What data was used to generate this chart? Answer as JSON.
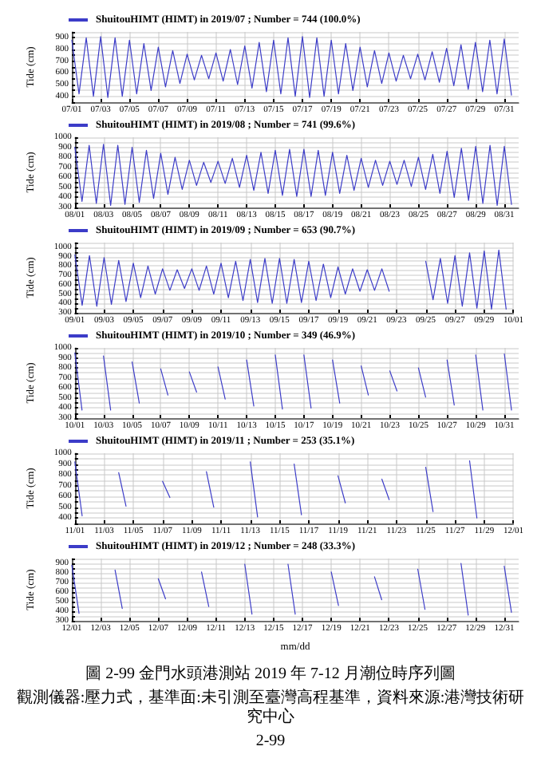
{
  "chart_data": [
    {
      "type": "line",
      "ylabel": "Tide (cm)",
      "legend": "top left",
      "grid": true,
      "line_style": "solid",
      "xlim": [
        "2019-07-01T00:00",
        "2019-08-01T00:00"
      ],
      "xticks": [
        {
          "value": "2019-07-01T00:00",
          "label": "07/01"
        },
        {
          "value": "2019-07-03T00:00",
          "label": "07/03"
        },
        {
          "value": "2019-07-05T00:00",
          "label": "07/05"
        },
        {
          "value": "2019-07-07T00:00",
          "label": "07/07"
        },
        {
          "value": "2019-07-09T00:00",
          "label": "07/09"
        },
        {
          "value": "2019-07-11T00:00",
          "label": "07/11"
        },
        {
          "value": "2019-07-13T00:00",
          "label": "07/13"
        },
        {
          "value": "2019-07-15T00:00",
          "label": "07/15"
        },
        {
          "value": "2019-07-17T00:00",
          "label": "07/17"
        },
        {
          "value": "2019-07-19T00:00",
          "label": "07/19"
        },
        {
          "value": "2019-07-21T00:00",
          "label": "07/21"
        },
        {
          "value": "2019-07-23T00:00",
          "label": "07/23"
        },
        {
          "value": "2019-07-25T00:00",
          "label": "07/25"
        },
        {
          "value": "2019-07-27T00:00",
          "label": "07/27"
        },
        {
          "value": "2019-07-29T00:00",
          "label": "07/29"
        },
        {
          "value": "2019-07-31T00:00",
          "label": "07/31"
        }
      ],
      "ylim": [
        350,
        950
      ],
      "yticks": [
        {
          "value": 350,
          "label": null
        },
        400,
        {
          "value": 450,
          "label": null
        },
        500,
        {
          "value": 550,
          "label": null
        },
        600,
        {
          "value": 650,
          "label": null
        },
        700,
        {
          "value": 750,
          "label": null
        },
        800,
        {
          "value": 850,
          "label": null
        },
        900,
        {
          "value": 950,
          "label": null
        }
      ],
      "x": [
        "2019-07-01T00:00",
        "2019-07-01T12:00",
        "2019-07-02T00:00",
        "2019-07-02T12:00",
        "2019-07-03T00:00",
        "2019-07-03T12:00",
        "2019-07-04T00:00",
        "2019-07-04T12:00",
        "2019-07-05T00:00",
        "2019-07-05T12:00",
        "2019-07-06T00:00",
        "2019-07-06T12:00",
        "2019-07-07T00:00",
        "2019-07-07T12:00",
        "2019-07-08T00:00",
        "2019-07-08T12:00",
        "2019-07-09T00:00",
        "2019-07-09T12:00",
        "2019-07-10T00:00",
        "2019-07-10T12:00",
        "2019-07-11T00:00",
        "2019-07-11T12:00",
        "2019-07-12T00:00",
        "2019-07-12T12:00",
        "2019-07-13T00:00",
        "2019-07-13T12:00",
        "2019-07-14T00:00",
        "2019-07-14T12:00",
        "2019-07-15T00:00",
        "2019-07-15T12:00",
        "2019-07-16T00:00",
        "2019-07-16T12:00",
        "2019-07-17T00:00",
        "2019-07-17T12:00",
        "2019-07-18T00:00",
        "2019-07-18T12:00",
        "2019-07-19T00:00",
        "2019-07-19T12:00",
        "2019-07-20T00:00",
        "2019-07-20T12:00",
        "2019-07-21T00:00",
        "2019-07-21T12:00",
        "2019-07-22T00:00",
        "2019-07-22T12:00",
        "2019-07-23T00:00",
        "2019-07-23T12:00",
        "2019-07-24T00:00",
        "2019-07-24T12:00",
        "2019-07-25T00:00",
        "2019-07-25T12:00",
        "2019-07-26T00:00",
        "2019-07-26T12:00",
        "2019-07-27T00:00",
        "2019-07-27T12:00",
        "2019-07-28T00:00",
        "2019-07-28T12:00",
        "2019-07-29T00:00",
        "2019-07-29T12:00",
        "2019-07-30T00:00",
        "2019-07-30T12:00",
        "2019-07-31T00:00",
        "2019-07-31T12:00"
      ],
      "series": [
        {
          "name": "ShuitouHIMT (HIMT) in 2019/07 ; Number = 744 (100.0%)",
          "color": "#3c3cc8",
          "values": [
            880,
            420,
            900,
            400,
            910,
            390,
            900,
            400,
            880,
            420,
            850,
            450,
            820,
            480,
            790,
            510,
            760,
            540,
            750,
            550,
            770,
            530,
            800,
            500,
            830,
            470,
            860,
            440,
            880,
            420,
            900,
            400,
            910,
            390,
            900,
            400,
            880,
            420,
            850,
            450,
            820,
            480,
            790,
            510,
            770,
            530,
            750,
            550,
            760,
            540,
            780,
            520,
            810,
            490,
            840,
            460,
            860,
            440,
            880,
            420,
            890,
            410
          ]
        }
      ]
    },
    {
      "type": "line",
      "ylabel": "Tide (cm)",
      "legend": "top left",
      "grid": true,
      "line_style": "solid",
      "xlim": [
        "2019-08-01T00:00",
        "2019-09-01T00:00"
      ],
      "xticks": [
        {
          "value": "2019-08-01T00:00",
          "label": "08/01"
        },
        {
          "value": "2019-08-03T00:00",
          "label": "08/03"
        },
        {
          "value": "2019-08-05T00:00",
          "label": "08/05"
        },
        {
          "value": "2019-08-07T00:00",
          "label": "08/07"
        },
        {
          "value": "2019-08-09T00:00",
          "label": "08/09"
        },
        {
          "value": "2019-08-11T00:00",
          "label": "08/11"
        },
        {
          "value": "2019-08-13T00:00",
          "label": "08/13"
        },
        {
          "value": "2019-08-15T00:00",
          "label": "08/15"
        },
        {
          "value": "2019-08-17T00:00",
          "label": "08/17"
        },
        {
          "value": "2019-08-19T00:00",
          "label": "08/19"
        },
        {
          "value": "2019-08-21T00:00",
          "label": "08/21"
        },
        {
          "value": "2019-08-23T00:00",
          "label": "08/23"
        },
        {
          "value": "2019-08-25T00:00",
          "label": "08/25"
        },
        {
          "value": "2019-08-27T00:00",
          "label": "08/27"
        },
        {
          "value": "2019-08-29T00:00",
          "label": "08/29"
        },
        {
          "value": "2019-08-31T00:00",
          "label": "08/31"
        }
      ],
      "ylim": [
        300,
        1000
      ],
      "yticks": [
        300,
        {
          "value": 350,
          "label": null
        },
        400,
        {
          "value": 450,
          "label": null
        },
        500,
        {
          "value": 550,
          "label": null
        },
        600,
        {
          "value": 650,
          "label": null
        },
        700,
        {
          "value": 750,
          "label": null
        },
        800,
        {
          "value": 850,
          "label": null
        },
        900,
        {
          "value": 950,
          "label": null
        },
        1000
      ],
      "x": [
        "2019-08-01T00:00",
        "2019-08-01T12:00",
        "2019-08-02T00:00",
        "2019-08-02T12:00",
        "2019-08-03T00:00",
        "2019-08-03T12:00",
        "2019-08-04T00:00",
        "2019-08-04T12:00",
        "2019-08-05T00:00",
        "2019-08-05T12:00",
        "2019-08-06T00:00",
        "2019-08-06T12:00",
        "2019-08-07T00:00",
        "2019-08-07T12:00",
        "2019-08-08T00:00",
        "2019-08-08T12:00",
        "2019-08-09T00:00",
        "2019-08-09T12:00",
        "2019-08-10T00:00",
        "2019-08-10T12:00",
        "2019-08-11T00:00",
        "2019-08-11T12:00",
        "2019-08-12T00:00",
        "2019-08-12T12:00",
        "2019-08-13T00:00",
        "2019-08-13T12:00",
        "2019-08-14T00:00",
        "2019-08-14T12:00",
        "2019-08-15T00:00",
        "2019-08-15T12:00",
        "2019-08-16T00:00",
        "2019-08-16T12:00",
        "2019-08-17T00:00",
        "2019-08-17T12:00",
        "2019-08-18T00:00",
        "2019-08-18T12:00",
        "2019-08-19T00:00",
        "2019-08-19T12:00",
        "2019-08-20T00:00",
        "2019-08-20T12:00",
        "2019-08-21T00:00",
        "2019-08-21T12:00",
        "2019-08-22T00:00",
        "2019-08-22T12:00",
        "2019-08-23T00:00",
        "2019-08-23T12:00",
        "2019-08-24T00:00",
        "2019-08-24T12:00",
        "2019-08-25T00:00",
        "2019-08-25T12:00",
        "2019-08-26T00:00",
        "2019-08-26T12:00",
        "2019-08-27T00:00",
        "2019-08-27T12:00",
        "2019-08-28T00:00",
        "2019-08-28T12:00",
        "2019-08-29T00:00",
        "2019-08-29T12:00",
        "2019-08-30T00:00",
        "2019-08-30T12:00",
        "2019-08-31T00:00",
        "2019-08-31T12:00"
      ],
      "series": [
        {
          "name": "ShuitouHIMT (HIMT) in 2019/08 ; Number = 741 (99.6%)",
          "color": "#3c3cc8",
          "values": [
            900,
            360,
            920,
            340,
            930,
            320,
            920,
            330,
            900,
            350,
            870,
            390,
            840,
            430,
            800,
            480,
            770,
            520,
            750,
            550,
            760,
            540,
            790,
            500,
            820,
            470,
            850,
            440,
            870,
            420,
            880,
            410,
            880,
            410,
            870,
            420,
            850,
            440,
            820,
            470,
            790,
            500,
            770,
            520,
            760,
            530,
            770,
            510,
            800,
            480,
            830,
            440,
            860,
            400,
            890,
            370,
            910,
            340,
            920,
            320,
            910,
            330
          ]
        }
      ]
    },
    {
      "type": "line",
      "ylabel": "Tide (cm)",
      "legend": "top left",
      "grid": true,
      "line_style": "solid",
      "xlim": [
        "2019-09-01T00:00",
        "2019-10-01T00:00"
      ],
      "xticks": [
        {
          "value": "2019-09-01T00:00",
          "label": "09/01"
        },
        {
          "value": "2019-09-03T00:00",
          "label": "09/03"
        },
        {
          "value": "2019-09-05T00:00",
          "label": "09/05"
        },
        {
          "value": "2019-09-07T00:00",
          "label": "09/07"
        },
        {
          "value": "2019-09-09T00:00",
          "label": "09/09"
        },
        {
          "value": "2019-09-11T00:00",
          "label": "09/11"
        },
        {
          "value": "2019-09-13T00:00",
          "label": "09/13"
        },
        {
          "value": "2019-09-15T00:00",
          "label": "09/15"
        },
        {
          "value": "2019-09-17T00:00",
          "label": "09/17"
        },
        {
          "value": "2019-09-19T00:00",
          "label": "09/19"
        },
        {
          "value": "2019-09-21T00:00",
          "label": "09/21"
        },
        {
          "value": "2019-09-23T00:00",
          "label": "09/23"
        },
        {
          "value": "2019-09-25T00:00",
          "label": "09/25"
        },
        {
          "value": "2019-09-27T00:00",
          "label": "09/27"
        },
        {
          "value": "2019-09-29T00:00",
          "label": "09/29"
        },
        {
          "value": "2019-10-01T00:00",
          "label": "10/01"
        }
      ],
      "ylim": [
        300,
        1050
      ],
      "yticks": [
        300,
        {
          "value": 350,
          "label": null
        },
        400,
        {
          "value": 450,
          "label": null
        },
        500,
        {
          "value": 550,
          "label": null
        },
        600,
        {
          "value": 650,
          "label": null
        },
        700,
        {
          "value": 750,
          "label": null
        },
        800,
        {
          "value": 850,
          "label": null
        },
        900,
        {
          "value": 950,
          "label": null
        },
        1000,
        {
          "value": 1050,
          "label": null
        }
      ],
      "x": [
        "2019-09-01T00:00",
        "2019-09-01T12:00",
        "2019-09-02T00:00",
        "2019-09-02T12:00",
        "2019-09-03T00:00",
        "2019-09-03T12:00",
        "2019-09-04T00:00",
        "2019-09-04T12:00",
        "2019-09-05T00:00",
        "2019-09-05T12:00",
        "2019-09-06T00:00",
        "2019-09-06T12:00",
        "2019-09-07T00:00",
        "2019-09-07T12:00",
        "2019-09-08T00:00",
        "2019-09-08T12:00",
        "2019-09-09T00:00",
        "2019-09-09T12:00",
        "2019-09-10T00:00",
        "2019-09-10T12:00",
        "2019-09-11T00:00",
        "2019-09-11T12:00",
        "2019-09-12T00:00",
        "2019-09-12T12:00",
        "2019-09-13T00:00",
        "2019-09-13T12:00",
        "2019-09-14T00:00",
        "2019-09-14T12:00",
        "2019-09-15T00:00",
        "2019-09-15T12:00",
        "2019-09-16T00:00",
        "2019-09-16T12:00",
        "2019-09-17T00:00",
        "2019-09-17T12:00",
        "2019-09-18T00:00",
        "2019-09-18T12:00",
        "2019-09-19T00:00",
        "2019-09-19T12:00",
        "2019-09-20T00:00",
        "2019-09-20T12:00",
        "2019-09-21T00:00",
        "2019-09-21T12:00",
        "2019-09-22T00:00",
        "2019-09-22T12:00",
        "2019-09-23T00:00",
        "2019-09-23T12:00",
        "2019-09-24T00:00",
        "2019-09-24T12:00",
        "2019-09-25T00:00",
        "2019-09-25T12:00",
        "2019-09-26T00:00",
        "2019-09-26T12:00",
        "2019-09-27T00:00",
        "2019-09-27T12:00",
        "2019-09-28T00:00",
        "2019-09-28T12:00",
        "2019-09-29T00:00",
        "2019-09-29T12:00",
        "2019-09-30T00:00",
        "2019-09-30T12:00"
      ],
      "series": [
        {
          "name": "ShuitouHIMT (HIMT) in 2019/09 ; Number = 653 (90.7%)",
          "color": "#3c3cc8",
          "values": [
            920,
            380,
            910,
            370,
            890,
            390,
            860,
            420,
            830,
            460,
            800,
            500,
            770,
            540,
            760,
            560,
            770,
            540,
            800,
            500,
            830,
            460,
            850,
            430,
            870,
            410,
            880,
            400,
            880,
            400,
            870,
            410,
            850,
            430,
            820,
            460,
            790,
            500,
            770,
            530,
            760,
            540,
            770,
            530,
            null,
            null,
            null,
            null,
            850,
            440,
            880,
            400,
            910,
            370,
            940,
            350,
            960,
            340,
            970,
            340
          ]
        }
      ]
    },
    {
      "type": "line",
      "ylabel": "Tide (cm)",
      "legend": "top left",
      "grid": true,
      "line_style": "solid",
      "xlim": [
        "2019-10-01T00:00",
        "2019-11-01T00:00"
      ],
      "xticks": [
        {
          "value": "2019-10-01T00:00",
          "label": "10/01"
        },
        {
          "value": "2019-10-03T00:00",
          "label": "10/03"
        },
        {
          "value": "2019-10-05T00:00",
          "label": "10/05"
        },
        {
          "value": "2019-10-07T00:00",
          "label": "10/07"
        },
        {
          "value": "2019-10-09T00:00",
          "label": "10/09"
        },
        {
          "value": "2019-10-11T00:00",
          "label": "10/11"
        },
        {
          "value": "2019-10-13T00:00",
          "label": "10/13"
        },
        {
          "value": "2019-10-15T00:00",
          "label": "10/15"
        },
        {
          "value": "2019-10-17T00:00",
          "label": "10/17"
        },
        {
          "value": "2019-10-19T00:00",
          "label": "10/19"
        },
        {
          "value": "2019-10-21T00:00",
          "label": "10/21"
        },
        {
          "value": "2019-10-23T00:00",
          "label": "10/23"
        },
        {
          "value": "2019-10-25T00:00",
          "label": "10/25"
        },
        {
          "value": "2019-10-27T00:00",
          "label": "10/27"
        },
        {
          "value": "2019-10-29T00:00",
          "label": "10/29"
        },
        {
          "value": "2019-10-31T00:00",
          "label": "10/31"
        }
      ],
      "ylim": [
        300,
        1000
      ],
      "yticks": [
        300,
        {
          "value": 350,
          "label": null
        },
        400,
        {
          "value": 450,
          "label": null
        },
        500,
        {
          "value": 550,
          "label": null
        },
        600,
        {
          "value": 650,
          "label": null
        },
        700,
        {
          "value": 750,
          "label": null
        },
        800,
        {
          "value": 850,
          "label": null
        },
        900,
        {
          "value": 950,
          "label": null
        },
        1000
      ],
      "x": [
        "2019-10-01T00:00",
        "2019-10-01T12:00",
        "2019-10-02T00:00",
        "2019-10-02T12:00",
        "2019-10-03T00:00",
        "2019-10-03T12:00",
        "2019-10-04T00:00",
        "2019-10-04T12:00",
        "2019-10-05T00:00",
        "2019-10-05T12:00",
        "2019-10-06T00:00",
        "2019-10-06T12:00",
        "2019-10-07T00:00",
        "2019-10-07T12:00",
        "2019-10-08T00:00",
        "2019-10-08T12:00",
        "2019-10-09T00:00",
        "2019-10-09T12:00",
        "2019-10-10T00:00",
        "2019-10-10T12:00",
        "2019-10-11T00:00",
        "2019-10-11T12:00",
        "2019-10-12T00:00",
        "2019-10-12T12:00",
        "2019-10-13T00:00",
        "2019-10-13T12:00",
        "2019-10-14T00:00",
        "2019-10-14T12:00",
        "2019-10-15T00:00",
        "2019-10-15T12:00",
        "2019-10-16T00:00",
        "2019-10-16T12:00",
        "2019-10-17T00:00",
        "2019-10-17T12:00",
        "2019-10-18T00:00",
        "2019-10-18T12:00",
        "2019-10-19T00:00",
        "2019-10-19T12:00",
        "2019-10-20T00:00",
        "2019-10-20T12:00",
        "2019-10-21T00:00",
        "2019-10-21T12:00",
        "2019-10-22T00:00",
        "2019-10-22T12:00",
        "2019-10-23T00:00",
        "2019-10-23T12:00",
        "2019-10-24T00:00",
        "2019-10-24T12:00",
        "2019-10-25T00:00",
        "2019-10-25T12:00",
        "2019-10-26T00:00",
        "2019-10-26T12:00",
        "2019-10-27T00:00",
        "2019-10-27T12:00",
        "2019-10-28T00:00",
        "2019-10-28T12:00",
        "2019-10-29T00:00",
        "2019-10-29T12:00",
        "2019-10-30T00:00",
        "2019-10-30T12:00",
        "2019-10-31T00:00",
        "2019-10-31T12:00"
      ],
      "series": [
        {
          "name": "ShuitouHIMT (HIMT) in 2019/10 ; Number = 349 (46.9%)",
          "color": "#3c3cc8",
          "values": [
            950,
            380,
            null,
            null,
            920,
            380,
            null,
            null,
            860,
            450,
            null,
            null,
            790,
            530,
            null,
            null,
            760,
            560,
            null,
            null,
            810,
            490,
            null,
            null,
            880,
            420,
            null,
            null,
            930,
            390,
            null,
            null,
            930,
            400,
            null,
            null,
            880,
            450,
            null,
            null,
            820,
            530,
            null,
            null,
            770,
            570,
            null,
            null,
            800,
            510,
            null,
            null,
            880,
            430,
            null,
            null,
            930,
            380,
            null,
            null,
            940,
            380
          ]
        }
      ]
    },
    {
      "type": "line",
      "ylabel": "Tide (cm)",
      "legend": "top left",
      "grid": true,
      "line_style": "solid",
      "xlim": [
        "2019-11-01T00:00",
        "2019-12-01T00:00"
      ],
      "xticks": [
        {
          "value": "2019-11-01T00:00",
          "label": "11/01"
        },
        {
          "value": "2019-11-03T00:00",
          "label": "11/03"
        },
        {
          "value": "2019-11-05T00:00",
          "label": "11/05"
        },
        {
          "value": "2019-11-07T00:00",
          "label": "11/07"
        },
        {
          "value": "2019-11-09T00:00",
          "label": "11/09"
        },
        {
          "value": "2019-11-11T00:00",
          "label": "11/11"
        },
        {
          "value": "2019-11-13T00:00",
          "label": "11/13"
        },
        {
          "value": "2019-11-15T00:00",
          "label": "11/15"
        },
        {
          "value": "2019-11-17T00:00",
          "label": "11/17"
        },
        {
          "value": "2019-11-19T00:00",
          "label": "11/19"
        },
        {
          "value": "2019-11-21T00:00",
          "label": "11/21"
        },
        {
          "value": "2019-11-23T00:00",
          "label": "11/23"
        },
        {
          "value": "2019-11-25T00:00",
          "label": "11/25"
        },
        {
          "value": "2019-11-27T00:00",
          "label": "11/27"
        },
        {
          "value": "2019-11-29T00:00",
          "label": "11/29"
        },
        {
          "value": "2019-12-01T00:00",
          "label": "12/01"
        }
      ],
      "ylim": [
        350,
        1000
      ],
      "yticks": [
        {
          "value": 350,
          "label": null
        },
        400,
        {
          "value": 450,
          "label": null
        },
        500,
        {
          "value": 550,
          "label": null
        },
        600,
        {
          "value": 650,
          "label": null
        },
        700,
        {
          "value": 750,
          "label": null
        },
        800,
        {
          "value": 850,
          "label": null
        },
        900,
        {
          "value": 950,
          "label": null
        },
        1000
      ],
      "x": [
        "2019-11-01T00:00",
        "2019-11-01T12:00",
        "2019-11-02T00:00",
        "2019-11-02T12:00",
        "2019-11-03T00:00",
        "2019-11-03T12:00",
        "2019-11-04T00:00",
        "2019-11-04T12:00",
        "2019-11-05T00:00",
        "2019-11-05T12:00",
        "2019-11-06T00:00",
        "2019-11-06T12:00",
        "2019-11-07T00:00",
        "2019-11-07T12:00",
        "2019-11-08T00:00",
        "2019-11-08T12:00",
        "2019-11-09T00:00",
        "2019-11-09T12:00",
        "2019-11-10T00:00",
        "2019-11-10T12:00",
        "2019-11-11T00:00",
        "2019-11-11T12:00",
        "2019-11-12T00:00",
        "2019-11-12T12:00",
        "2019-11-13T00:00",
        "2019-11-13T12:00",
        "2019-11-14T00:00",
        "2019-11-14T12:00",
        "2019-11-15T00:00",
        "2019-11-15T12:00",
        "2019-11-16T00:00",
        "2019-11-16T12:00",
        "2019-11-17T00:00",
        "2019-11-17T12:00",
        "2019-11-18T00:00",
        "2019-11-18T12:00",
        "2019-11-19T00:00",
        "2019-11-19T12:00",
        "2019-11-20T00:00",
        "2019-11-20T12:00",
        "2019-11-21T00:00",
        "2019-11-21T12:00",
        "2019-11-22T00:00",
        "2019-11-22T12:00",
        "2019-11-23T00:00",
        "2019-11-23T12:00",
        "2019-11-24T00:00",
        "2019-11-24T12:00",
        "2019-11-25T00:00",
        "2019-11-25T12:00",
        "2019-11-26T00:00",
        "2019-11-26T12:00",
        "2019-11-27T00:00",
        "2019-11-27T12:00",
        "2019-11-28T00:00",
        "2019-11-28T12:00"
      ],
      "series": [
        {
          "name": "ShuitouHIMT (HIMT) in 2019/11 ; Number = 253 (35.1%)",
          "color": "#3c3cc8",
          "values": [
            920,
            420,
            null,
            null,
            null,
            null,
            820,
            510,
            null,
            null,
            null,
            null,
            740,
            590,
            null,
            null,
            null,
            null,
            830,
            500,
            null,
            null,
            null,
            null,
            920,
            410,
            null,
            null,
            null,
            null,
            900,
            430,
            null,
            null,
            null,
            null,
            790,
            540,
            null,
            null,
            null,
            null,
            760,
            570,
            null,
            null,
            null,
            null,
            870,
            460,
            null,
            null,
            null,
            null,
            930,
            400
          ]
        }
      ]
    },
    {
      "type": "line",
      "ylabel": "Tide (cm)",
      "xlabel": "mm/dd",
      "legend": "top left",
      "grid": true,
      "line_style": "solid",
      "title": "圖 2-99 金門水頭港測站 2019 年 7-12 月潮位時序列圖",
      "annotations": [
        "觀測儀器:壓力式，基準面:未引測至臺灣高程基準，資料來源:港灣技術研究中心",
        "2-99"
      ],
      "xlim": [
        "2019-12-01T00:00",
        "2020-01-01T00:00"
      ],
      "xticks": [
        {
          "value": "2019-12-01T00:00",
          "label": "12/01"
        },
        {
          "value": "2019-12-03T00:00",
          "label": "12/03"
        },
        {
          "value": "2019-12-05T00:00",
          "label": "12/05"
        },
        {
          "value": "2019-12-07T00:00",
          "label": "12/07"
        },
        {
          "value": "2019-12-09T00:00",
          "label": "12/09"
        },
        {
          "value": "2019-12-11T00:00",
          "label": "12/11"
        },
        {
          "value": "2019-12-13T00:00",
          "label": "12/13"
        },
        {
          "value": "2019-12-15T00:00",
          "label": "12/15"
        },
        {
          "value": "2019-12-17T00:00",
          "label": "12/17"
        },
        {
          "value": "2019-12-19T00:00",
          "label": "12/19"
        },
        {
          "value": "2019-12-21T00:00",
          "label": "12/21"
        },
        {
          "value": "2019-12-23T00:00",
          "label": "12/23"
        },
        {
          "value": "2019-12-25T00:00",
          "label": "12/25"
        },
        {
          "value": "2019-12-27T00:00",
          "label": "12/27"
        },
        {
          "value": "2019-12-29T00:00",
          "label": "12/29"
        },
        {
          "value": "2019-12-31T00:00",
          "label": "12/31"
        }
      ],
      "ylim": [
        300,
        950
      ],
      "yticks": [
        300,
        {
          "value": 350,
          "label": null
        },
        400,
        {
          "value": 450,
          "label": null
        },
        500,
        {
          "value": 550,
          "label": null
        },
        600,
        {
          "value": 650,
          "label": null
        },
        700,
        {
          "value": 750,
          "label": null
        },
        800,
        {
          "value": 850,
          "label": null
        },
        900,
        {
          "value": 950,
          "label": null
        }
      ],
      "x": [
        "2019-12-01T00:00",
        "2019-12-01T12:00",
        "2019-12-02T00:00",
        "2019-12-02T12:00",
        "2019-12-03T00:00",
        "2019-12-03T12:00",
        "2019-12-04T00:00",
        "2019-12-04T12:00",
        "2019-12-05T00:00",
        "2019-12-05T12:00",
        "2019-12-06T00:00",
        "2019-12-06T12:00",
        "2019-12-07T00:00",
        "2019-12-07T12:00",
        "2019-12-08T00:00",
        "2019-12-08T12:00",
        "2019-12-09T00:00",
        "2019-12-09T12:00",
        "2019-12-10T00:00",
        "2019-12-10T12:00",
        "2019-12-11T00:00",
        "2019-12-11T12:00",
        "2019-12-12T00:00",
        "2019-12-12T12:00",
        "2019-12-13T00:00",
        "2019-12-13T12:00",
        "2019-12-14T00:00",
        "2019-12-14T12:00",
        "2019-12-15T00:00",
        "2019-12-15T12:00",
        "2019-12-16T00:00",
        "2019-12-16T12:00",
        "2019-12-17T00:00",
        "2019-12-17T12:00",
        "2019-12-18T00:00",
        "2019-12-18T12:00",
        "2019-12-19T00:00",
        "2019-12-19T12:00",
        "2019-12-20T00:00",
        "2019-12-20T12:00",
        "2019-12-21T00:00",
        "2019-12-21T12:00",
        "2019-12-22T00:00",
        "2019-12-22T12:00",
        "2019-12-23T00:00",
        "2019-12-23T12:00",
        "2019-12-24T00:00",
        "2019-12-24T12:00",
        "2019-12-25T00:00",
        "2019-12-25T12:00",
        "2019-12-26T00:00",
        "2019-12-26T12:00",
        "2019-12-27T00:00",
        "2019-12-27T12:00",
        "2019-12-28T00:00",
        "2019-12-28T12:00",
        "2019-12-29T00:00",
        "2019-12-29T12:00",
        "2019-12-30T00:00",
        "2019-12-30T12:00",
        "2019-12-31T00:00",
        "2019-12-31T12:00"
      ],
      "series": [
        {
          "name": "ShuitouHIMT (HIMT) in 2019/12 ; Number = 248 (33.3%)",
          "color": "#3c3cc8",
          "values": [
            880,
            380,
            null,
            null,
            null,
            null,
            830,
            430,
            null,
            null,
            null,
            null,
            740,
            530,
            null,
            null,
            null,
            null,
            810,
            450,
            null,
            null,
            null,
            null,
            890,
            370,
            null,
            null,
            null,
            null,
            890,
            370,
            null,
            null,
            null,
            null,
            810,
            460,
            null,
            null,
            null,
            null,
            760,
            520,
            null,
            null,
            null,
            null,
            840,
            420,
            null,
            null,
            null,
            null,
            900,
            360,
            null,
            null,
            null,
            null,
            870,
            390
          ]
        }
      ]
    }
  ]
}
